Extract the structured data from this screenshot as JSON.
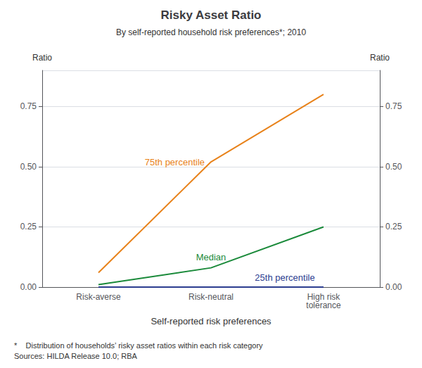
{
  "chart_data": {
    "type": "line",
    "title": "Risky Asset Ratio",
    "subtitle": "By self-reported household risk preferences*; 2010",
    "xlabel": "Self-reported risk preferences",
    "ylabel": "Ratio",
    "y2label": "Ratio",
    "categories": [
      "Risk-averse",
      "Risk-neutral",
      "High risk\ntolerance"
    ],
    "series": [
      {
        "name": "75th percentile",
        "color": "#E8821A",
        "values": [
          0.06,
          0.52,
          0.8
        ]
      },
      {
        "name": "Median",
        "color": "#1A8A3A",
        "values": [
          0.01,
          0.08,
          0.25
        ]
      },
      {
        "name": "25th percentile",
        "color": "#2B3D8F",
        "values": [
          0.0,
          0.0,
          0.0
        ]
      }
    ],
    "ylim": [
      0.0,
      0.9
    ],
    "yticks": [
      {
        "value": 0,
        "label": "0.00"
      },
      {
        "value": 0.25,
        "label": "0.25"
      },
      {
        "value": 0.5,
        "label": "0.50"
      },
      {
        "value": 0.75,
        "label": "0.75"
      }
    ],
    "y2lim": [
      0.0,
      0.9
    ],
    "y2ticks": [
      {
        "value": 0,
        "label": "0.00"
      },
      {
        "value": 0.25,
        "label": "0.25"
      },
      {
        "value": 0.5,
        "label": "0.50"
      },
      {
        "value": 0.75,
        "label": "0.75"
      }
    ],
    "grid": true,
    "footnote": "*    Distribution of households’ risky asset ratios within each risk category\nSources: HILDA Release 10.0; RBA"
  }
}
